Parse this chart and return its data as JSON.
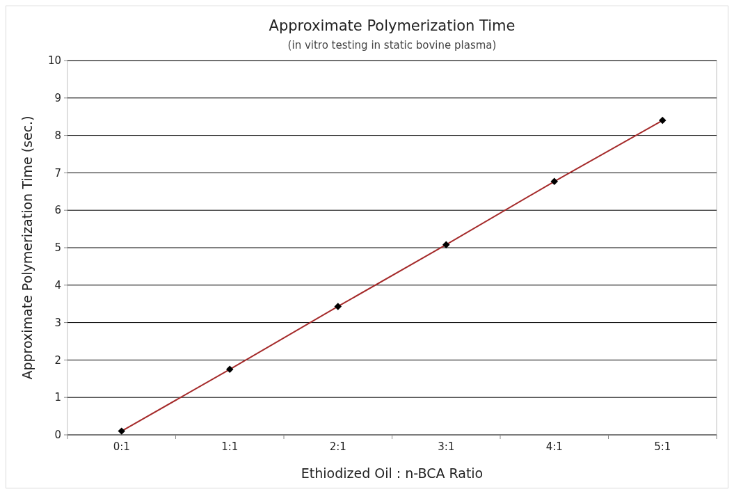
{
  "chart_data": {
    "type": "line",
    "title": "Approximate Polymerization Time",
    "subtitle": "(in vitro testing in static bovine plasma)",
    "xlabel": "Ethiodized Oil : n-BCA Ratio",
    "ylabel": "Approximate Polymerization Time (sec.)",
    "categories": [
      "0:1",
      "1:1",
      "2:1",
      "3:1",
      "4:1",
      "5:1"
    ],
    "series": [
      {
        "color": "#a52a2a",
        "values": [
          0.1,
          1.75,
          3.43,
          5.08,
          6.77,
          8.4
        ],
        "marker": "none"
      },
      {
        "type": "scatter",
        "color": "#000000",
        "values": [
          0.1,
          1.75,
          3.43,
          5.08,
          6.77,
          8.4
        ],
        "marker": "diamond"
      }
    ],
    "ylim": [
      0,
      10
    ],
    "yticks": [
      0,
      1,
      2,
      3,
      4,
      5,
      6,
      7,
      8,
      9,
      10
    ],
    "grid": "y"
  }
}
